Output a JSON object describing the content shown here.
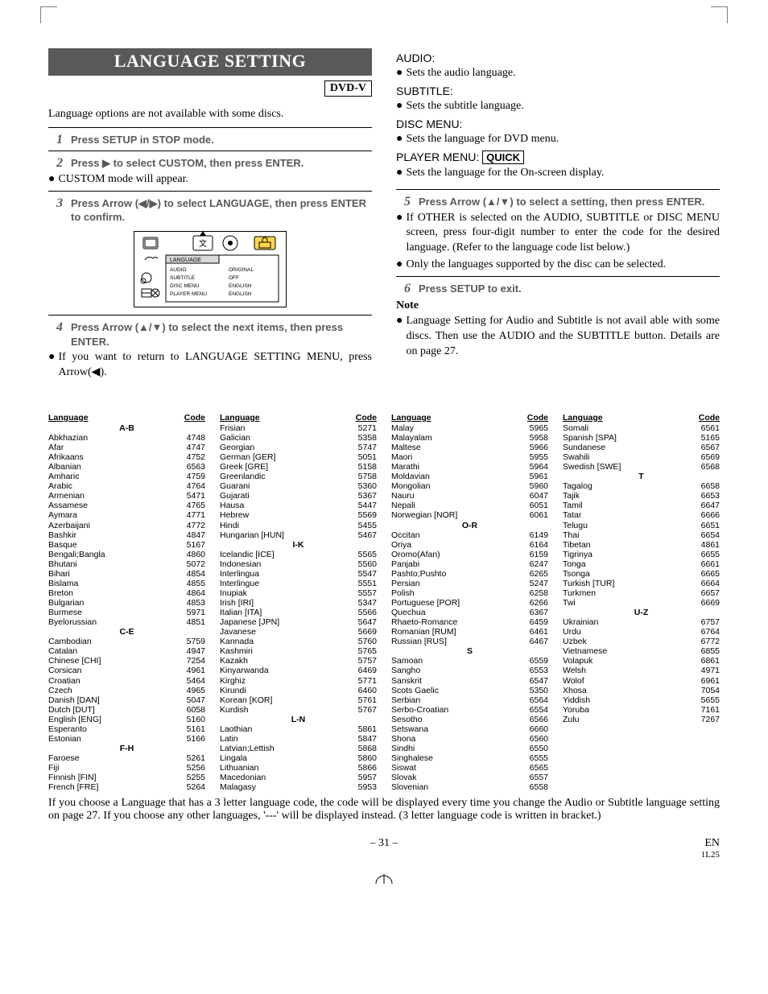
{
  "banner_title": "LANGUAGE SETTING",
  "dvd_badge": "DVD-V",
  "intro": "Language options are not available with some discs.",
  "steps": {
    "s1": "Press SETUP in STOP mode.",
    "s2": "Press ▶ to select CUSTOM, then press ENTER.",
    "s2_note": "CUSTOM mode will appear.",
    "s3": "Press Arrow (◀/▶) to select LANGUAGE, then press ENTER to confirm.",
    "s4": "Press Arrow (▲/▼) to select the next items, then press ENTER.",
    "s4_note": "If you want to return to LANGUAGE SETTING MENU, press Arrow(◀).",
    "s5": "Press Arrow (▲/▼) to select a setting, then press ENTER.",
    "s5_note1": "If OTHER is selected on the AUDIO, SUBTITLE or DISC MENU screen, press four-digit number to enter the code for the desired language. (Refer to the language code list below.)",
    "s5_note2": "Only the languages supported by the disc can be selected.",
    "s6": "Press SETUP to exit."
  },
  "captions": {
    "audio_h": "AUDIO:",
    "audio_b": "Sets the audio language.",
    "subtitle_h": "SUBTITLE:",
    "subtitle_b": "Sets the subtitle language.",
    "discmenu_h": "DISC MENU:",
    "discmenu_b": "Sets the language for DVD menu.",
    "playermenu_h": "PLAYER MENU: ",
    "quick": "QUICK",
    "playermenu_b": "Sets the language for the On-screen display."
  },
  "note_label": "Note",
  "note_body": "Language Setting for Audio and Subtitle is not avail able with some discs. Then use the AUDIO and the SUBTITLE button. Details are on page 27.",
  "diagram": {
    "title": "LANGUAGE",
    "rows": [
      [
        "AUDIO",
        "ORIGINAL"
      ],
      [
        "SUBTITLE",
        "OFF"
      ],
      [
        "DISC MENU",
        "ENGLISH"
      ],
      [
        "PLAYER MENU",
        "ENGLISH"
      ]
    ]
  },
  "lang_header": {
    "l": "Language",
    "c": "Code"
  },
  "lang_cols": [
    [
      {
        "g": "A-B"
      },
      {
        "l": "Abkhazian",
        "c": "4748"
      },
      {
        "l": "Afar",
        "c": "4747"
      },
      {
        "l": "Afrikaans",
        "c": "4752"
      },
      {
        "l": "Albanian",
        "c": "6563"
      },
      {
        "l": "Amharic",
        "c": "4759"
      },
      {
        "l": "Arabic",
        "c": "4764"
      },
      {
        "l": "Armenian",
        "c": "5471"
      },
      {
        "l": "Assamese",
        "c": "4765"
      },
      {
        "l": "Aymara",
        "c": "4771"
      },
      {
        "l": "Azerbaijani",
        "c": "4772"
      },
      {
        "l": "Bashkir",
        "c": "4847"
      },
      {
        "l": "Basque",
        "c": "5167"
      },
      {
        "l": "Bengali;Bangla",
        "c": "4860"
      },
      {
        "l": "Bhutani",
        "c": "5072"
      },
      {
        "l": "Bihari",
        "c": "4854"
      },
      {
        "l": "Bislama",
        "c": "4855"
      },
      {
        "l": "Breton",
        "c": "4864"
      },
      {
        "l": "Bulgarian",
        "c": "4853"
      },
      {
        "l": "Burmese",
        "c": "5971"
      },
      {
        "l": "Byelorussian",
        "c": "4851"
      },
      {
        "g": "C-E"
      },
      {
        "l": "Cambodian",
        "c": "5759"
      },
      {
        "l": "Catalan",
        "c": "4947"
      },
      {
        "l": "Chinese [CHI]",
        "c": "7254"
      },
      {
        "l": "Corsican",
        "c": "4961"
      },
      {
        "l": "Croatian",
        "c": "5464"
      },
      {
        "l": "Czech",
        "c": "4965"
      },
      {
        "l": "Danish [DAN]",
        "c": "5047"
      },
      {
        "l": "Dutch [DUT]",
        "c": "6058"
      },
      {
        "l": "English [ENG]",
        "c": "5160"
      },
      {
        "l": "Esperanto",
        "c": "5161"
      },
      {
        "l": "Estonian",
        "c": "5166"
      },
      {
        "g": "F-H"
      },
      {
        "l": "Faroese",
        "c": "5261"
      },
      {
        "l": "Fiji",
        "c": "5256"
      },
      {
        "l": "Finnish [FIN]",
        "c": "5255"
      },
      {
        "l": "French [FRE]",
        "c": "5264"
      }
    ],
    [
      {
        "l": "Frisian",
        "c": "5271"
      },
      {
        "l": "Galician",
        "c": "5358"
      },
      {
        "l": "Georgian",
        "c": "5747"
      },
      {
        "l": "German [GER]",
        "c": "5051"
      },
      {
        "l": "Greek [GRE]",
        "c": "5158"
      },
      {
        "l": "Greenlandic",
        "c": "5758"
      },
      {
        "l": "Guarani",
        "c": "5360"
      },
      {
        "l": "Gujarati",
        "c": "5367"
      },
      {
        "l": "Hausa",
        "c": "5447"
      },
      {
        "l": "Hebrew",
        "c": "5569"
      },
      {
        "l": "Hindi",
        "c": "5455"
      },
      {
        "l": "Hungarian [HUN]",
        "c": "5467"
      },
      {
        "g": "I-K"
      },
      {
        "l": "Icelandic [ICE]",
        "c": "5565"
      },
      {
        "l": "Indonesian",
        "c": "5560"
      },
      {
        "l": "Interlingua",
        "c": "5547"
      },
      {
        "l": "Interlingue",
        "c": "5551"
      },
      {
        "l": "Inupiak",
        "c": "5557"
      },
      {
        "l": "Irish [IRI]",
        "c": "5347"
      },
      {
        "l": "Italian [ITA]",
        "c": "5566"
      },
      {
        "l": "Japanese [JPN]",
        "c": "5647"
      },
      {
        "l": "Javanese",
        "c": "5669"
      },
      {
        "l": "Kannada",
        "c": "5760"
      },
      {
        "l": "Kashmiri",
        "c": "5765"
      },
      {
        "l": "Kazakh",
        "c": "5757"
      },
      {
        "l": "Kinyarwanda",
        "c": "6469"
      },
      {
        "l": "Kirghiz",
        "c": "5771"
      },
      {
        "l": "Kirundi",
        "c": "6460"
      },
      {
        "l": "Korean [KOR]",
        "c": "5761"
      },
      {
        "l": "Kurdish",
        "c": "5767"
      },
      {
        "g": "L-N"
      },
      {
        "l": "Laothian",
        "c": "5861"
      },
      {
        "l": "Latin",
        "c": "5847"
      },
      {
        "l": "Latvian;Lettish",
        "c": "5868"
      },
      {
        "l": "Lingala",
        "c": "5860"
      },
      {
        "l": "Lithuanian",
        "c": "5866"
      },
      {
        "l": "Macedonian",
        "c": "5957"
      },
      {
        "l": "Malagasy",
        "c": "5953"
      }
    ],
    [
      {
        "l": "Malay",
        "c": "5965"
      },
      {
        "l": "Malayalam",
        "c": "5958"
      },
      {
        "l": "Maltese",
        "c": "5966"
      },
      {
        "l": "Maori",
        "c": "5955"
      },
      {
        "l": "Marathi",
        "c": "5964"
      },
      {
        "l": "Moldavian",
        "c": "5961"
      },
      {
        "l": "Mongolian",
        "c": "5960"
      },
      {
        "l": "Nauru",
        "c": "6047"
      },
      {
        "l": "Nepali",
        "c": "6051"
      },
      {
        "l": "Norwegian [NOR]",
        "c": "6061"
      },
      {
        "g": "O-R"
      },
      {
        "l": "Occitan",
        "c": "6149"
      },
      {
        "l": "Oriya",
        "c": "6164"
      },
      {
        "l": "Oromo(Afan)",
        "c": "6159"
      },
      {
        "l": "Panjabi",
        "c": "6247"
      },
      {
        "l": "Pashto;Pushto",
        "c": "6265"
      },
      {
        "l": "Persian",
        "c": "5247"
      },
      {
        "l": "Polish",
        "c": "6258"
      },
      {
        "l": "Portuguese [POR]",
        "c": "6266"
      },
      {
        "l": "Quechua",
        "c": "6367"
      },
      {
        "l": "Rhaeto-Romance",
        "c": "6459"
      },
      {
        "l": "Romanian [RUM]",
        "c": "6461"
      },
      {
        "l": "Russian [RUS]",
        "c": "6467"
      },
      {
        "g": "S"
      },
      {
        "l": "Samoan",
        "c": "6559"
      },
      {
        "l": "Sangho",
        "c": "6553"
      },
      {
        "l": "Sanskrit",
        "c": "6547"
      },
      {
        "l": "Scots Gaelic",
        "c": "5350"
      },
      {
        "l": "Serbian",
        "c": "6564"
      },
      {
        "l": "Serbo-Croatian",
        "c": "6554"
      },
      {
        "l": "Sesotho",
        "c": "6566"
      },
      {
        "l": "Setswana",
        "c": "6660"
      },
      {
        "l": "Shona",
        "c": "6560"
      },
      {
        "l": "Sindhi",
        "c": "6550"
      },
      {
        "l": "Singhalese",
        "c": "6555"
      },
      {
        "l": "Siswat",
        "c": "6565"
      },
      {
        "l": "Slovak",
        "c": "6557"
      },
      {
        "l": "Slovenian",
        "c": "6558"
      }
    ],
    [
      {
        "l": "Somali",
        "c": "6561"
      },
      {
        "l": "Spanish [SPA]",
        "c": "5165"
      },
      {
        "l": "Sundanese",
        "c": "6567"
      },
      {
        "l": "Swahili",
        "c": "6569"
      },
      {
        "l": "Swedish [SWE]",
        "c": "6568"
      },
      {
        "g": "T"
      },
      {
        "l": "Tagalog",
        "c": "6658"
      },
      {
        "l": "Tajik",
        "c": "6653"
      },
      {
        "l": "Tamil",
        "c": "6647"
      },
      {
        "l": "Tatar",
        "c": "6666"
      },
      {
        "l": "Telugu",
        "c": "6651"
      },
      {
        "l": "Thai",
        "c": "6654"
      },
      {
        "l": "Tibetan",
        "c": "4861"
      },
      {
        "l": "Tigrinya",
        "c": "6655"
      },
      {
        "l": "Tonga",
        "c": "6661"
      },
      {
        "l": "Tsonga",
        "c": "6665"
      },
      {
        "l": "Turkish [TUR]",
        "c": "6664"
      },
      {
        "l": "Turkmen",
        "c": "6657"
      },
      {
        "l": "Twi",
        "c": "6669"
      },
      {
        "g": "U-Z"
      },
      {
        "l": "Ukrainian",
        "c": "6757"
      },
      {
        "l": "Urdu",
        "c": "6764"
      },
      {
        "l": "Uzbek",
        "c": "6772"
      },
      {
        "l": "Vietnamese",
        "c": "6855"
      },
      {
        "l": "Volapuk",
        "c": "6861"
      },
      {
        "l": "Welsh",
        "c": "4971"
      },
      {
        "l": "Wolof",
        "c": "6961"
      },
      {
        "l": "Xhosa",
        "c": "7054"
      },
      {
        "l": "Yiddish",
        "c": "5655"
      },
      {
        "l": "Yoruba",
        "c": "7161"
      },
      {
        "l": "Zulu",
        "c": "7267"
      }
    ]
  ],
  "footnote": "If you choose a Language that has a 3 letter language code, the code will be displayed every time you change the Audio or Subtitle language setting on page 27. If you choose any other languages, '---' will be displayed instead. (3 letter language code is written in bracket.)",
  "page_num": "– 31 –",
  "page_en": "EN",
  "page_code": "1L25"
}
